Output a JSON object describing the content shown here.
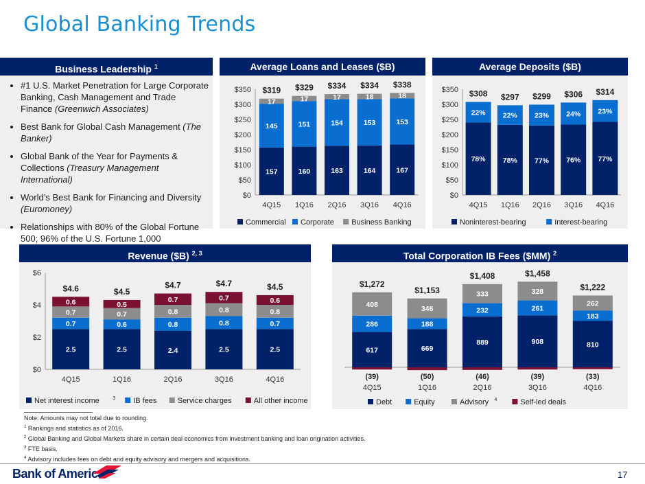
{
  "title": "Global Banking Trends",
  "leadership": {
    "header": "Business Leadership",
    "header_sup": "1",
    "bullets": [
      {
        "text": "#1 U.S. Market Penetration for Large Corporate Banking, Cash Management and Trade Finance",
        "italic": "(Greenwich Associates)"
      },
      {
        "text": "Best Bank for Global Cash Management",
        "italic": "(The Banker)"
      },
      {
        "text": "Global Bank of the Year for Payments & Collections",
        "italic": "(Treasury Management International)"
      },
      {
        "text": "World’s Best Bank for Financing and Diversity",
        "italic": "(Euromoney)"
      },
      {
        "text": "Relationships with 80% of the Global Fortune 500; 96% of the U.S. Fortune 1,000",
        "italic": ""
      }
    ]
  },
  "colors": {
    "navy": "#012169",
    "blue": "#0a6ed1",
    "gray": "#8c8c8c",
    "maroon": "#7a1131",
    "panel": "#efefef",
    "title": "#1a8fd0"
  },
  "chart_data": [
    {
      "id": "loans",
      "type": "bar",
      "title": "Average Loans and Leases ($B)",
      "categories": [
        "4Q15",
        "1Q16",
        "2Q16",
        "3Q16",
        "4Q16"
      ],
      "series": [
        {
          "name": "Commercial",
          "values": [
            157,
            160,
            163,
            164,
            167
          ],
          "labels": [
            "157",
            "160",
            "163",
            "164",
            "167"
          ]
        },
        {
          "name": "Corporate",
          "values": [
            145,
            151,
            154,
            153,
            153
          ],
          "labels": [
            "145",
            "151",
            "154",
            "153",
            "153"
          ]
        },
        {
          "name": "Business Banking",
          "values": [
            17,
            17,
            17,
            18,
            18
          ],
          "labels": [
            "17",
            "17",
            "17",
            "18",
            "18"
          ]
        }
      ],
      "totals": [
        "$319",
        "$329",
        "$334",
        "$334",
        "$338"
      ],
      "ylim": [
        0,
        350
      ],
      "yticks": [
        "$0",
        "$50",
        "$100",
        "$150",
        "$200",
        "$250",
        "$300",
        "$350"
      ],
      "ytick_values": [
        0,
        50,
        100,
        150,
        200,
        250,
        300,
        350
      ]
    },
    {
      "id": "deposits",
      "type": "bar",
      "title": "Average Deposits ($B)",
      "categories": [
        "4Q15",
        "1Q16",
        "2Q16",
        "3Q16",
        "4Q16"
      ],
      "series": [
        {
          "name": "Noninterest-bearing",
          "values": [
            240,
            232,
            230,
            233,
            242
          ],
          "labels": [
            "78%",
            "78%",
            "77%",
            "76%",
            "77%"
          ]
        },
        {
          "name": "Interest-bearing",
          "values": [
            68,
            65,
            69,
            73,
            72
          ],
          "labels": [
            "22%",
            "22%",
            "23%",
            "24%",
            "23%"
          ]
        }
      ],
      "totals": [
        "$308",
        "$297",
        "$299",
        "$306",
        "$314"
      ],
      "ylim": [
        0,
        350
      ],
      "yticks": [
        "$0",
        "$50",
        "$100",
        "$150",
        "$200",
        "$250",
        "$300",
        "$350"
      ],
      "ytick_values": [
        0,
        50,
        100,
        150,
        200,
        250,
        300,
        350
      ]
    },
    {
      "id": "revenue",
      "type": "bar",
      "title": "Revenue ($B)",
      "title_sup": "2, 3",
      "categories": [
        "4Q15",
        "1Q16",
        "2Q16",
        "3Q16",
        "4Q16"
      ],
      "series": [
        {
          "name": "Net interest income",
          "name_sup": "3",
          "values": [
            2.5,
            2.5,
            2.4,
            2.5,
            2.5
          ],
          "labels": [
            "2.5",
            "2.5",
            "2.4",
            "2.5",
            "2.5"
          ]
        },
        {
          "name": "IB fees",
          "values": [
            0.7,
            0.6,
            0.8,
            0.8,
            0.7
          ],
          "labels": [
            "0.7",
            "0.6",
            "0.8",
            "0.8",
            "0.7"
          ]
        },
        {
          "name": "Service charges",
          "values": [
            0.7,
            0.7,
            0.8,
            0.8,
            0.8
          ],
          "labels": [
            "0.7",
            "0.7",
            "0.8",
            "0.8",
            "0.8"
          ]
        },
        {
          "name": "All other income",
          "values": [
            0.6,
            0.5,
            0.7,
            0.7,
            0.6
          ],
          "labels": [
            "0.6",
            "0.5",
            "0.7",
            "0.7",
            "0.6"
          ]
        }
      ],
      "totals": [
        "$4.6",
        "$4.5",
        "$4.7",
        "$4.7",
        "$4.5"
      ],
      "ylim": [
        0,
        6
      ],
      "yticks": [
        "$0",
        "$2",
        "$4",
        "$6"
      ],
      "ytick_values": [
        0,
        2,
        4,
        6
      ]
    },
    {
      "id": "ibfees",
      "type": "bar",
      "title": "Total Corporation IB Fees ($MM)",
      "title_sup": "2",
      "categories": [
        "4Q15",
        "1Q16",
        "2Q16",
        "3Q16",
        "4Q16"
      ],
      "series": [
        {
          "name": "Debt",
          "values": [
            617,
            669,
            889,
            908,
            810
          ],
          "labels": [
            "617",
            "669",
            "889",
            "908",
            "810"
          ]
        },
        {
          "name": "Equity",
          "values": [
            286,
            188,
            232,
            261,
            183
          ],
          "labels": [
            "286",
            "188",
            "232",
            "261",
            "183"
          ]
        },
        {
          "name": "Advisory",
          "name_sup": "4",
          "values": [
            408,
            346,
            333,
            328,
            262
          ],
          "labels": [
            "408",
            "346",
            "333",
            "328",
            "262"
          ]
        },
        {
          "name": "Self-led deals",
          "values": [
            -39,
            -50,
            -46,
            -39,
            -33
          ],
          "labels": [
            "(39)",
            "(50)",
            "(46)",
            "(39)",
            "(33)"
          ]
        }
      ],
      "totals": [
        "$1,272",
        "$1,153",
        "$1,408",
        "$1,458",
        "$1,222"
      ],
      "ylim": [
        -60,
        1500
      ]
    }
  ],
  "notes": [
    {
      "sup": "",
      "text": "Note: Amounts may not total due to rounding."
    },
    {
      "sup": "1",
      "text": "Rankings and statistics as of 2016."
    },
    {
      "sup": "2",
      "text": "Global Banking and Global Markets share in certain deal economics from investment banking and loan origination activities."
    },
    {
      "sup": "3",
      "text": "FTE basis."
    },
    {
      "sup": "4",
      "text": "Advisory includes fees on debt and equity advisory and mergers and acquisitions."
    }
  ],
  "footer": {
    "logo": "Bank of America",
    "page": "17"
  }
}
